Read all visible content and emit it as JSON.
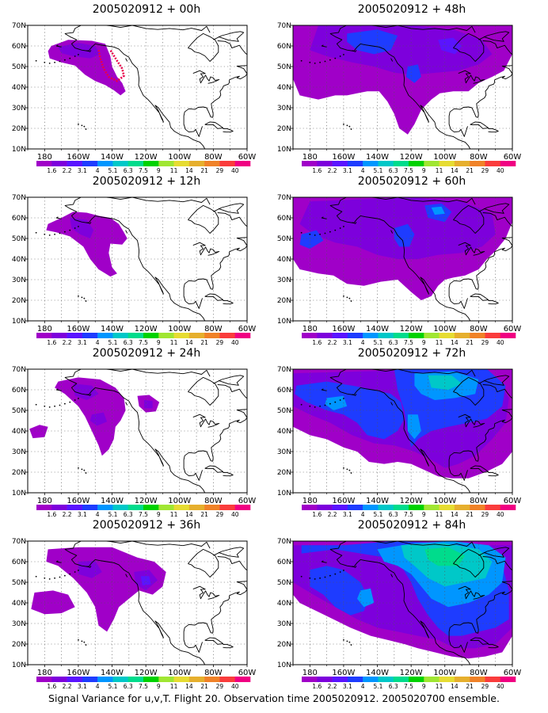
{
  "figure": {
    "footer": "Signal Variance for u,v,T. Flight 20. Observation time 2005020912. 2005020700 ensemble."
  },
  "panels": [
    {
      "id": "p00",
      "title": "2005020912 + 00h",
      "col": 0,
      "row": 0,
      "lead": "00h"
    },
    {
      "id": "p12",
      "title": "2005020912 + 12h",
      "col": 0,
      "row": 1,
      "lead": "12h"
    },
    {
      "id": "p24",
      "title": "2005020912 + 24h",
      "col": 0,
      "row": 2,
      "lead": "24h"
    },
    {
      "id": "p36",
      "title": "2005020912 + 36h",
      "col": 0,
      "row": 3,
      "lead": "36h"
    },
    {
      "id": "p48",
      "title": "2005020912 + 48h",
      "col": 1,
      "row": 0,
      "lead": "48h"
    },
    {
      "id": "p60",
      "title": "2005020912 + 60h",
      "col": 1,
      "row": 1,
      "lead": "60h"
    },
    {
      "id": "p72",
      "title": "2005020912 + 72h",
      "col": 1,
      "row": 2,
      "lead": "72h"
    },
    {
      "id": "p84",
      "title": "2005020912 + 84h",
      "col": 1,
      "row": 3,
      "lead": "84h"
    }
  ],
  "axes": {
    "lat_labels": [
      "10N",
      "20N",
      "30N",
      "40N",
      "50N",
      "60N",
      "70N"
    ],
    "lon_labels": [
      "180",
      "160W",
      "140W",
      "120W",
      "100W",
      "80W",
      "60W"
    ],
    "lat_range": [
      10,
      70
    ],
    "lon_range": [
      -190,
      -60
    ]
  },
  "colorbar": {
    "levels": [
      "1.6",
      "2.2",
      "3.1",
      "4",
      "5.1",
      "6.3",
      "7.5",
      "9",
      "11",
      "14",
      "21",
      "29",
      "40"
    ],
    "colors": [
      "#a000c8",
      "#7d00dc",
      "#5a14ff",
      "#1e3cff",
      "#0096ff",
      "#00c8c8",
      "#00dc8c",
      "#00d200",
      "#a0e632",
      "#e6dc32",
      "#e6af2d",
      "#f08228",
      "#fa3c3c",
      "#f00082"
    ]
  },
  "colors": {
    "flight_track": "#e8004a",
    "coast": "#000000",
    "grid": "#555555"
  }
}
